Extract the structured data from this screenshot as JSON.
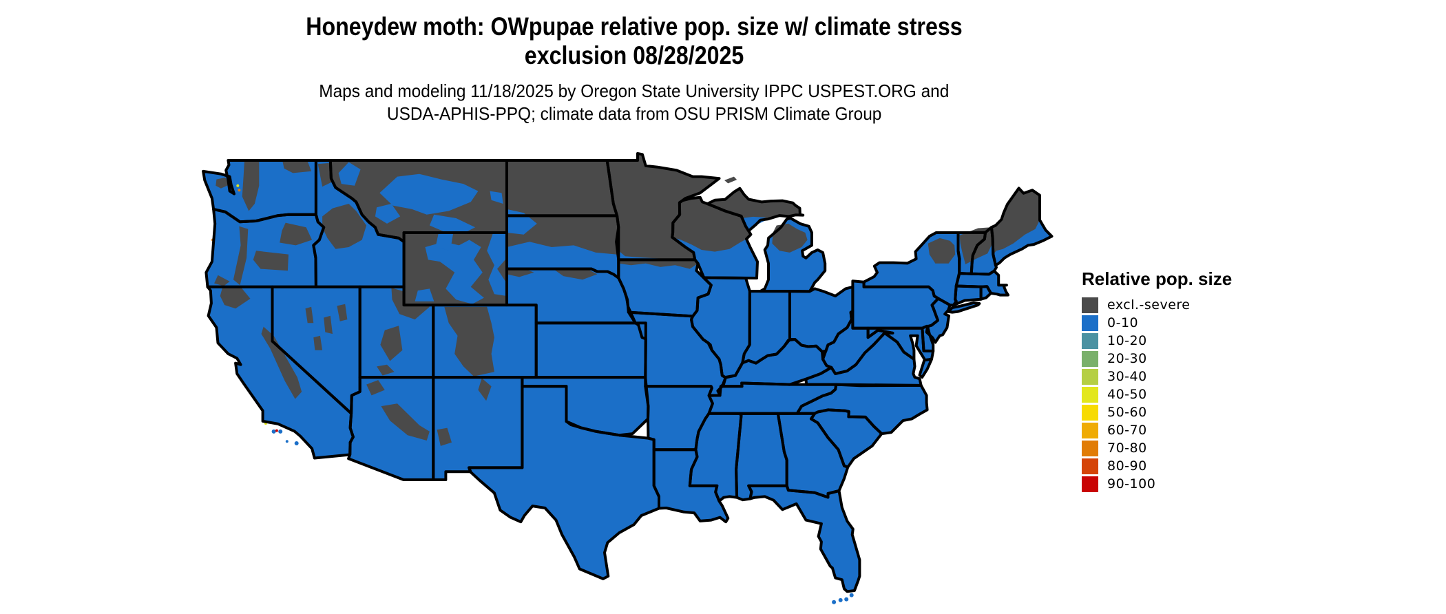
{
  "title": {
    "line1": "Honeydew moth: OWpupae relative pop. size w/ climate stress",
    "line2": "exclusion 08/28/2025"
  },
  "subtitle": {
    "line1": "Maps and modeling 11/18/2025 by Oregon State University IPPC USPEST.ORG and",
    "line2": "USDA-APHIS-PPQ; climate data from OSU PRISM Climate Group"
  },
  "legend": {
    "title": "Relative pop. size",
    "items": [
      {
        "label": "excl.-severe",
        "color": "#4a4a4a"
      },
      {
        "label": "0-10",
        "color": "#1b6fc8"
      },
      {
        "label": "10-20",
        "color": "#4b92a2"
      },
      {
        "label": "20-30",
        "color": "#7ab06b"
      },
      {
        "label": "30-40",
        "color": "#b5cf44"
      },
      {
        "label": "40-50",
        "color": "#e3e71c"
      },
      {
        "label": "50-60",
        "color": "#f7db02"
      },
      {
        "label": "60-70",
        "color": "#efab04"
      },
      {
        "label": "70-80",
        "color": "#e17c06"
      },
      {
        "label": "80-90",
        "color": "#d54408"
      },
      {
        "label": "90-100",
        "color": "#c90404"
      }
    ]
  },
  "map": {
    "border_color": "#000000",
    "background": "#ffffff"
  }
}
